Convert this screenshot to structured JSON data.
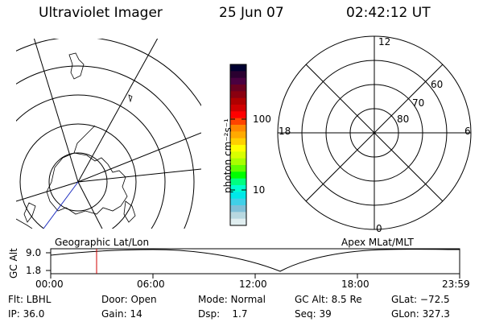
{
  "header": {
    "instrument": "Ultraviolet Imager",
    "date": "25 Jun 07",
    "time": "02:42:12 UT"
  },
  "colorbar": {
    "unit_label": "photon cm⁻²s⁻¹",
    "ticks": [
      "100",
      "10"
    ],
    "colors": [
      "#000030",
      "#2a0030",
      "#4a0040",
      "#6a0020",
      "#8a0010",
      "#b00000",
      "#d00000",
      "#ff0000",
      "#ff4400",
      "#ff8800",
      "#ffaa00",
      "#ffd000",
      "#ffff00",
      "#d8ff00",
      "#a8ff00",
      "#60ff00",
      "#00ff00",
      "#00ff80",
      "#00ffd0",
      "#00e8e8",
      "#40d0e8",
      "#80c0d8",
      "#b8d8e0",
      "#e0eef0"
    ]
  },
  "apex_plot": {
    "mlt_labels": [
      "12",
      "18",
      "6",
      "0"
    ],
    "mlat_labels": [
      "60",
      "70",
      "80"
    ]
  },
  "timeline": {
    "y_axis_label": "GC Alt",
    "y_ticks": [
      "9.0",
      "1.8"
    ],
    "left_title": "Geographic Lat/Lon",
    "right_title": "Apex MLat/MLT",
    "x_ticks": [
      "00:00",
      "06:00",
      "12:00",
      "18:00",
      "23:59"
    ]
  },
  "status": {
    "flt": "Flt: LBHL",
    "ip": "IP: 36.0",
    "door": "Door: Open",
    "gain": "Gain: 14",
    "mode": "Mode: Normal",
    "dsp": "Dsp:    1.7",
    "gc_alt": "GC Alt: 8.5 Re",
    "seq": "Seq: 39",
    "glat": "GLat: −72.5",
    "glon": "GLon: 327.3"
  }
}
